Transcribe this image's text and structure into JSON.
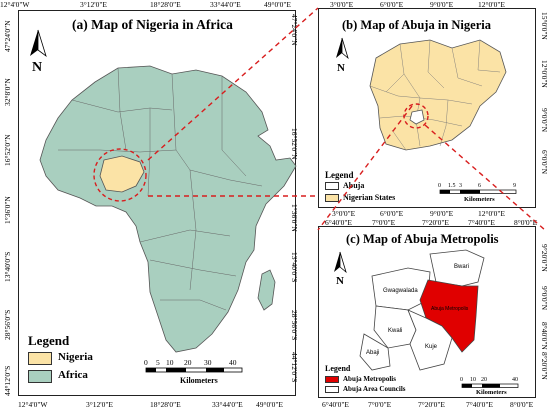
{
  "panel_a": {
    "title": "(a) Map of Nigeria in Africa",
    "ticks_top": [
      "12°4'0\"W",
      "3°12'0\"E",
      "18°28'0\"E",
      "33°44'0\"E",
      "49°0'0\"E"
    ],
    "ticks_bottom": [
      "12°4'0\"W",
      "3°12'0\"E",
      "18°28'0\"E",
      "33°44'0\"E",
      "49°0'0\"E"
    ],
    "ticks_left": [
      "47°24'0\"N",
      "32°8'0\"N",
      "16°52'0\"N",
      "1°36'0\"N",
      "13°40'0\"S",
      "28°56'0\"S",
      "44°12'0\"S"
    ],
    "ticks_right": [
      "47°24'0\"N",
      "32°8'0\"N",
      "16°52'0\"N",
      "1°36'0\"N",
      "13°40'0\"S",
      "28°56'0\"S",
      "44°12'0\"S"
    ],
    "north": "N",
    "legend": {
      "title": "Legend",
      "items": [
        {
          "label": "Nigeria",
          "color": "#fbe3a6"
        },
        {
          "label": "Africa",
          "color": "#a9cfbf"
        }
      ]
    },
    "scale": {
      "labels": [
        "0",
        "5",
        "10",
        "20",
        "30",
        "40"
      ],
      "unit": "Kilometers"
    }
  },
  "panel_b": {
    "title": "(b) Map of Abuja in Nigeria",
    "ticks_top": [
      "3°0'0\"E",
      "6°0'0\"E",
      "9°0'0\"E",
      "12°0'0\"E"
    ],
    "ticks_bottom": [
      "3°0'0\"E",
      "6°0'0\"E",
      "9°0'0\"E",
      "12°0'0\"E"
    ],
    "ticks_right": [
      "15°0'0\"N",
      "12°0'0\"N",
      "9°0'0\"N",
      "6°0'0\"N"
    ],
    "north": "N",
    "legend": {
      "title": "Legend",
      "items": [
        {
          "label": "Abuja",
          "color": "#ffffff"
        },
        {
          "label": "Nigerian States",
          "color": "#fbe3a6"
        }
      ]
    },
    "scale": {
      "labels": [
        "0",
        "1.5",
        "3",
        "6",
        "9"
      ],
      "unit": "Kilometers"
    }
  },
  "panel_c": {
    "title": "(c) Map of Abuja Metropolis",
    "ticks_top": [
      "6°40'0\"E",
      "7°0'0\"E",
      "7°20'0\"E",
      "7°40'0\"E",
      "8°0'0\"E"
    ],
    "ticks_bottom": [
      "6°40'0\"E",
      "7°0'0\"E",
      "7°20'0\"E",
      "7°40'0\"E",
      "8°0'0\"E"
    ],
    "ticks_right": [
      "9°20'0\"N",
      "9°0'0\"N",
      "8°40'0\"N",
      "8°20'0\"N"
    ],
    "north": "N",
    "areas": [
      "Bwari",
      "Gwagwalada",
      "Abuja Metropolis",
      "Kwali",
      "Kuje",
      "Abaji"
    ],
    "legend": {
      "title": "Legend",
      "items": [
        {
          "label": "Abuja Metropolis",
          "color": "#e00000"
        },
        {
          "label": "Abuja Area Councils",
          "color": "#ffffff"
        }
      ]
    },
    "scale": {
      "labels": [
        "0",
        "10",
        "20",
        "40"
      ],
      "unit": "Kilometers"
    }
  }
}
